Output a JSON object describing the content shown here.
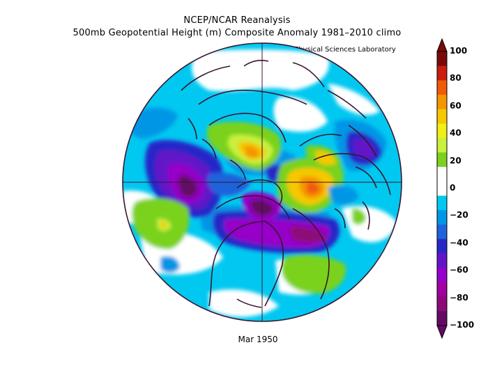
{
  "header": {
    "line1": "NCEP/NCAR Reanalysis",
    "line2": "500mb Geopotential Height (m) Composite Anomaly 1981–2010 climo",
    "credit": "NOAA Physical Sciences Laboratory"
  },
  "footer": {
    "date": "Mar 1950"
  },
  "colorbar": {
    "labels": [
      "100",
      "80",
      "60",
      "40",
      "20",
      "0",
      "−20",
      "−40",
      "−60",
      "−80",
      "−100"
    ],
    "colors": [
      "#7a0a0a",
      "#c81e0a",
      "#f05a0a",
      "#f59600",
      "#f5c800",
      "#f0f014",
      "#c8f03c",
      "#7ad21e",
      "#ffffff",
      "#ffffff",
      "#00c8f0",
      "#0096e6",
      "#1e64dc",
      "#2828c8",
      "#6414c8",
      "#9600c8",
      "#a000a0",
      "#8c0a78",
      "#640a64"
    ]
  },
  "map": {
    "projection": "north polar stereographic",
    "field": "500mb height anomaly"
  }
}
